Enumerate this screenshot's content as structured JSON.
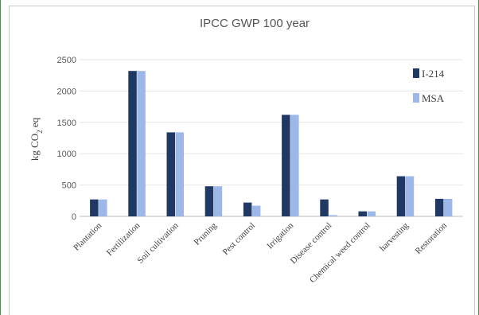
{
  "chart_data": {
    "type": "bar",
    "title": "IPCC GWP 100 year",
    "xlabel": "",
    "ylabel": "kg CO2 eq",
    "ylim": [
      0,
      2500
    ],
    "yticks": [
      0,
      500,
      1000,
      1500,
      2000,
      2500
    ],
    "grid": true,
    "legend_position": "top-right",
    "categories": [
      "Plantation",
      "Fertilization",
      "Soil cultivation",
      "Pruning",
      "Pest control",
      "Irrigation",
      "Disease control",
      "Chemical weed control",
      "harvesting",
      "Restoration"
    ],
    "series": [
      {
        "name": "I-214",
        "color": "#1f3864",
        "values": [
          270,
          2320,
          1340,
          480,
          220,
          1620,
          270,
          80,
          640,
          280
        ]
      },
      {
        "name": "MSA",
        "color": "#9db8e8",
        "values": [
          270,
          2320,
          1340,
          480,
          170,
          1620,
          20,
          80,
          640,
          280
        ]
      }
    ]
  }
}
